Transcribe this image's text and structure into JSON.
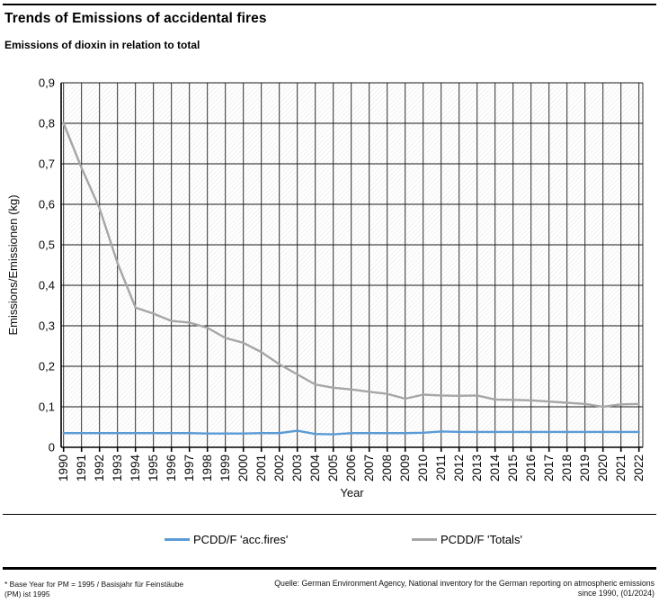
{
  "header": {
    "title": "Trends of Emissions of accidental fires",
    "subtitle": "Emissions of dioxin in relation to total"
  },
  "chart_data": {
    "type": "line",
    "xlabel": "Year",
    "ylabel": "Emissions/Emissionen (kg)",
    "ylim": [
      0,
      0.9
    ],
    "ytick_step": 0.1,
    "ytick_labels": [
      "0",
      "0,1",
      "0,2",
      "0,3",
      "0,4",
      "0,5",
      "0,6",
      "0,7",
      "0,8",
      "0,9"
    ],
    "grid": true,
    "legend_position": "bottom",
    "x": [
      "1990",
      "1991",
      "1992",
      "1993",
      "1994",
      "1995",
      "1996",
      "1997",
      "1998",
      "1999",
      "2000",
      "2001",
      "2002",
      "2003",
      "2004",
      "2005",
      "2006",
      "2007",
      "2008",
      "2009",
      "2010",
      "2011",
      "2012",
      "2013",
      "2014",
      "2015",
      "2016",
      "2017",
      "2018",
      "2019",
      "2020",
      "2021",
      "2022"
    ],
    "series": [
      {
        "name": "PCDD/F 'acc.fires'",
        "color": "#5B9BD5",
        "values": [
          0.035,
          0.035,
          0.035,
          0.035,
          0.035,
          0.035,
          0.035,
          0.035,
          0.034,
          0.034,
          0.034,
          0.035,
          0.035,
          0.041,
          0.033,
          0.032,
          0.035,
          0.035,
          0.035,
          0.035,
          0.036,
          0.039,
          0.038,
          0.038,
          0.038,
          0.038,
          0.038,
          0.038,
          0.038,
          0.038,
          0.038,
          0.038,
          0.038
        ]
      },
      {
        "name": "PCDD/F 'Totals'",
        "color": "#A6A6A6",
        "values": [
          0.8,
          0.69,
          0.59,
          0.455,
          0.345,
          0.33,
          0.312,
          0.308,
          0.295,
          0.27,
          0.258,
          0.235,
          0.205,
          0.18,
          0.155,
          0.147,
          0.143,
          0.137,
          0.132,
          0.12,
          0.13,
          0.128,
          0.127,
          0.128,
          0.118,
          0.117,
          0.116,
          0.113,
          0.11,
          0.107,
          0.1,
          0.106,
          0.107
        ]
      }
    ]
  },
  "footer": {
    "note_line1": "* Base Year for PM = 1995 / Basisjahr für Feinstäube",
    "note_line2": "(PM) ist 1995",
    "source_line1": "Quelle: German Environment Agency, National inventory for the German reporting on atmospheric emissions",
    "source_line2": "since 1990, (01/2024)"
  }
}
